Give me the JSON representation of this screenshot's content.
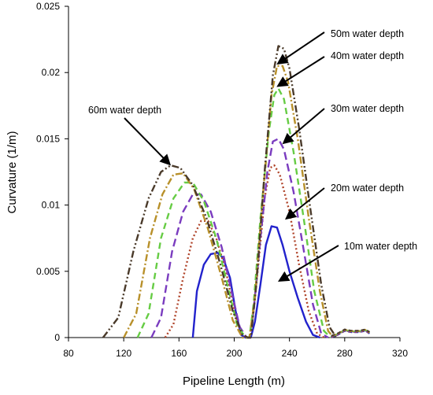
{
  "chart_data": {
    "type": "line",
    "xlabel": "Pipeline Length (m)",
    "ylabel": "Curvature (1/m)",
    "xlim": [
      80,
      320
    ],
    "ylim": [
      0,
      0.025
    ],
    "x_ticks": [
      "80",
      "120",
      "160",
      "200",
      "240",
      "280",
      "320"
    ],
    "y_ticks": [
      "0",
      "0.005",
      "0.01",
      "0.015",
      "0.02",
      "0.025"
    ],
    "grid": false,
    "series": [
      {
        "label": "10m water depth",
        "color": "#2222cc",
        "dash": "solid",
        "points": [
          [
            170,
            0
          ],
          [
            173,
            0.0035
          ],
          [
            178,
            0.0055
          ],
          [
            183,
            0.0063
          ],
          [
            188,
            0.0064
          ],
          [
            192,
            0.006
          ],
          [
            197,
            0.0045
          ],
          [
            201,
            0.002
          ],
          [
            205,
            0.0002
          ],
          [
            208,
            0
          ],
          [
            212,
            0
          ],
          [
            215,
            0.0012
          ],
          [
            219,
            0.004
          ],
          [
            223,
            0.007
          ],
          [
            227,
            0.0084
          ],
          [
            231,
            0.0083
          ],
          [
            235,
            0.007
          ],
          [
            240,
            0.005
          ],
          [
            246,
            0.003
          ],
          [
            252,
            0.0012
          ],
          [
            257,
            0.0002
          ],
          [
            262,
            0
          ]
        ]
      },
      {
        "label": "20m water depth",
        "color": "#b0442a",
        "dash": "dot",
        "points": [
          [
            150,
            0
          ],
          [
            156,
            0.001
          ],
          [
            163,
            0.0045
          ],
          [
            170,
            0.0075
          ],
          [
            176,
            0.0088
          ],
          [
            181,
            0.0088
          ],
          [
            187,
            0.0075
          ],
          [
            194,
            0.005
          ],
          [
            200,
            0.002
          ],
          [
            205,
            0.0003
          ],
          [
            209,
            0
          ],
          [
            211,
            0
          ],
          [
            213,
            0.001
          ],
          [
            217,
            0.005
          ],
          [
            222,
            0.0105
          ],
          [
            226,
            0.0128
          ],
          [
            229,
            0.013
          ],
          [
            233,
            0.0123
          ],
          [
            240,
            0.0095
          ],
          [
            247,
            0.0055
          ],
          [
            254,
            0.002
          ],
          [
            260,
            0.0003
          ],
          [
            265,
            0
          ]
        ]
      },
      {
        "label": "30m water depth",
        "color": "#7a3cbf",
        "dash": "longdash",
        "points": [
          [
            140,
            0
          ],
          [
            147,
            0.0015
          ],
          [
            155,
            0.0065
          ],
          [
            163,
            0.0095
          ],
          [
            170,
            0.0108
          ],
          [
            176,
            0.0108
          ],
          [
            183,
            0.0095
          ],
          [
            191,
            0.0068
          ],
          [
            198,
            0.0035
          ],
          [
            204,
            0.0008
          ],
          [
            209,
            0
          ],
          [
            211,
            0
          ],
          [
            214,
            0.002
          ],
          [
            219,
            0.0075
          ],
          [
            224,
            0.0125
          ],
          [
            228,
            0.0148
          ],
          [
            232,
            0.015
          ],
          [
            236,
            0.0142
          ],
          [
            243,
            0.011
          ],
          [
            250,
            0.0068
          ],
          [
            257,
            0.0025
          ],
          [
            263,
            0.0003
          ],
          [
            268,
            0
          ]
        ]
      },
      {
        "label": "40m water depth",
        "color": "#66cc44",
        "dash": "dash",
        "points": [
          [
            130,
            0
          ],
          [
            138,
            0.0018
          ],
          [
            147,
            0.0075
          ],
          [
            156,
            0.0105
          ],
          [
            164,
            0.0117
          ],
          [
            170,
            0.0117
          ],
          [
            178,
            0.0103
          ],
          [
            187,
            0.0075
          ],
          [
            195,
            0.004
          ],
          [
            202,
            0.001
          ],
          [
            208,
            0
          ],
          [
            211,
            0
          ],
          [
            214,
            0.0025
          ],
          [
            219,
            0.009
          ],
          [
            225,
            0.0155
          ],
          [
            229,
            0.0183
          ],
          [
            232,
            0.0188
          ],
          [
            236,
            0.018
          ],
          [
            243,
            0.014
          ],
          [
            251,
            0.0085
          ],
          [
            258,
            0.0035
          ],
          [
            265,
            0.0005
          ],
          [
            270,
            0
          ]
        ]
      },
      {
        "label": "50m water depth",
        "color": "#b8902a",
        "dash": "dashdot",
        "points": [
          [
            120,
            0
          ],
          [
            129,
            0.0018
          ],
          [
            139,
            0.0075
          ],
          [
            148,
            0.0108
          ],
          [
            156,
            0.0123
          ],
          [
            163,
            0.0124
          ],
          [
            171,
            0.0112
          ],
          [
            181,
            0.0082
          ],
          [
            191,
            0.0045
          ],
          [
            199,
            0.0013
          ],
          [
            206,
            0
          ],
          [
            211,
            0
          ],
          [
            215,
            0.003
          ],
          [
            221,
            0.011
          ],
          [
            227,
            0.0183
          ],
          [
            231,
            0.0205
          ],
          [
            235,
            0.0205
          ],
          [
            239,
            0.0193
          ],
          [
            246,
            0.015
          ],
          [
            254,
            0.009
          ],
          [
            262,
            0.0035
          ],
          [
            268,
            0.0005
          ],
          [
            272,
            0
          ]
        ]
      },
      {
        "label": "60m water depth",
        "color": "#4a3a2a",
        "dash": "dashdotdot",
        "points": [
          [
            105,
            0
          ],
          [
            116,
            0.0015
          ],
          [
            127,
            0.0065
          ],
          [
            138,
            0.0105
          ],
          [
            147,
            0.0125
          ],
          [
            154,
            0.013
          ],
          [
            161,
            0.0128
          ],
          [
            170,
            0.0115
          ],
          [
            180,
            0.009
          ],
          [
            190,
            0.0055
          ],
          [
            199,
            0.002
          ],
          [
            206,
            0.0002
          ],
          [
            210,
            0
          ],
          [
            212,
            0
          ],
          [
            216,
            0.004
          ],
          [
            222,
            0.0125
          ],
          [
            228,
            0.0198
          ],
          [
            232,
            0.022
          ],
          [
            236,
            0.0218
          ],
          [
            240,
            0.0203
          ],
          [
            247,
            0.0158
          ],
          [
            255,
            0.0098
          ],
          [
            263,
            0.004
          ],
          [
            269,
            0.0008
          ],
          [
            274,
            0
          ]
        ]
      }
    ],
    "tail": {
      "colors": [
        "#2222cc",
        "#b0442a",
        "#7a3cbf",
        "#66cc44",
        "#b8902a",
        "#4a3a2a"
      ],
      "points": [
        [
          270,
          0
        ],
        [
          275,
          0.0002
        ],
        [
          280,
          0.0005
        ],
        [
          285,
          0.0004
        ],
        [
          290,
          0.0004
        ],
        [
          295,
          0.0005
        ],
        [
          298,
          0.0003
        ]
      ]
    },
    "annotations": [
      {
        "text": "60m water depth",
        "target": [
          153,
          0.0131
        ]
      },
      {
        "text": "50m water depth",
        "target": [
          232,
          0.0207
        ]
      },
      {
        "text": "40m water depth",
        "target": [
          232,
          0.019
        ]
      },
      {
        "text": "30m water depth",
        "target": [
          236,
          0.0147
        ]
      },
      {
        "text": "20m water depth",
        "target": [
          238,
          0.009
        ]
      },
      {
        "text": "10m water depth",
        "target": [
          233,
          0.0043
        ]
      }
    ]
  }
}
